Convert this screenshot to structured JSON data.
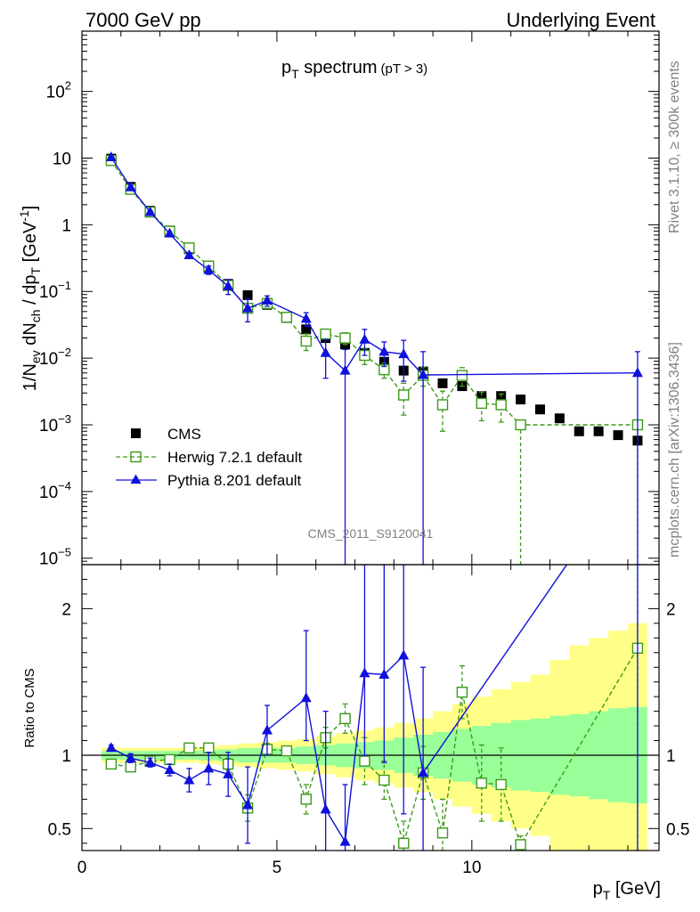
{
  "header": {
    "left": "7000 GeV pp",
    "right": "Underlying Event"
  },
  "side": {
    "rivet": "Rivet 3.1.10, ≥ 300k events",
    "mcplots": "mcplots.cern.ch [arXiv:1306.3436]"
  },
  "chart_data": {
    "type": "scatter",
    "title_main": "p",
    "title_sub": "T",
    "title_rest": " spectrum",
    "title_cut": "(pT >  3)",
    "analysis_label": "CMS_2011_S9120041",
    "xlabel_main": "p",
    "xlabel_sub": "T",
    "xlabel_rest": " [GeV]",
    "ylabel": "1/N_ev dN_ch / dp_T [GeV^-1]",
    "ylabel_parts": {
      "a": "1/N",
      "a_sub": "ev",
      "b": " dN",
      "b_sub": "ch",
      "c": " / dp",
      "c_sub": "T",
      "d": " [GeV",
      "d_sup": "-1",
      "e": "]"
    },
    "ratio_ylabel": "Ratio to CMS",
    "xlim": [
      0,
      14.8
    ],
    "ylim": [
      8e-06,
      800
    ],
    "yscale": "log",
    "ratio_ylim": [
      0.35,
      2.3
    ],
    "x_ticks": [
      0,
      5,
      10
    ],
    "x_tick_labels": [
      "0",
      "5",
      "10"
    ],
    "y_ticks": [
      1e-05,
      0.0001,
      0.001,
      0.01,
      0.1,
      1,
      10,
      100
    ],
    "y_tick_labels": [
      {
        "base": "10",
        "exp": "−5"
      },
      {
        "base": "10",
        "exp": "−4"
      },
      {
        "base": "10",
        "exp": "−3"
      },
      {
        "base": "10",
        "exp": "−2"
      },
      {
        "base": "10",
        "exp": "−1"
      },
      {
        "base": "1",
        "exp": ""
      },
      {
        "base": "10",
        "exp": ""
      },
      {
        "base": "10",
        "exp": "2"
      }
    ],
    "ratio_ticks": [
      0.5,
      1,
      2
    ],
    "ratio_tick_labels": [
      "0.5",
      "1",
      "2"
    ],
    "legend": {
      "position": "lower-left",
      "entries": [
        "CMS",
        "Herwig 7.2.1 default",
        "Pythia 8.201 default"
      ]
    },
    "colors": {
      "data": "#000000",
      "herwig": "#3d9a1a",
      "pythia": "#1010dd",
      "band_inner": "#99ff99",
      "band_outer": "#ffff88"
    },
    "series": [
      {
        "name": "CMS",
        "x": [
          0.75,
          1.25,
          1.75,
          2.25,
          2.75,
          3.25,
          3.75,
          4.25,
          4.75,
          5.25,
          5.75,
          6.25,
          6.75,
          7.25,
          7.75,
          8.25,
          8.75,
          9.25,
          9.75,
          10.25,
          10.75,
          11.25,
          11.75,
          12.25,
          12.75,
          13.25,
          13.75,
          14.25
        ],
        "y": [
          9.8,
          3.7,
          1.62,
          0.82,
          0.43,
          0.23,
          0.13,
          0.088,
          0.063,
          0.04,
          0.027,
          0.02,
          0.016,
          0.012,
          0.0088,
          0.0065,
          0.0063,
          0.0042,
          0.0038,
          0.0027,
          0.0027,
          0.0024,
          0.0017,
          0.00125,
          0.0008,
          0.0008,
          0.0007,
          0.00058
        ]
      },
      {
        "name": "Herwig 7.2.1 default",
        "x": [
          0.75,
          1.25,
          1.75,
          2.25,
          2.75,
          3.25,
          3.75,
          4.25,
          4.75,
          5.25,
          5.75,
          6.25,
          6.75,
          7.25,
          7.75,
          8.25,
          8.75,
          9.25,
          9.75,
          10.25,
          10.75,
          11.25,
          14.25
        ],
        "y": [
          9.2,
          3.4,
          1.55,
          0.8,
          0.45,
          0.24,
          0.123,
          0.056,
          0.066,
          0.041,
          0.018,
          0.023,
          0.02,
          0.011,
          0.0067,
          0.0028,
          0.0055,
          0.002,
          0.0055,
          0.0021,
          0.002,
          0.001,
          0.001
        ],
        "ylo": [
          9.0,
          3.35,
          1.52,
          0.78,
          0.44,
          0.235,
          0.115,
          0.048,
          0.06,
          0.038,
          0.013,
          0.019,
          0.016,
          0.008,
          0.005,
          0.0014,
          0.0038,
          0.0008,
          0.0038,
          0.00115,
          0.0011,
          8e-06,
          8e-06
        ],
        "yhi": [
          9.4,
          3.45,
          1.58,
          0.82,
          0.46,
          0.245,
          0.131,
          0.064,
          0.072,
          0.044,
          0.023,
          0.027,
          0.024,
          0.014,
          0.0084,
          0.0042,
          0.0072,
          0.0032,
          0.0072,
          0.0031,
          0.0029,
          0.0011,
          0.0011
        ],
        "ratio": [
          0.94,
          0.92,
          0.96,
          0.97,
          1.05,
          1.05,
          0.94,
          0.64,
          1.04,
          1.03,
          0.7,
          1.12,
          1.25,
          0.96,
          0.83,
          0.4,
          0.88,
          0.47,
          1.43,
          0.81,
          0.8,
          0.39,
          1.73
        ],
        "ratio_lo": [
          0.93,
          0.9,
          0.94,
          0.95,
          1.02,
          1.02,
          0.9,
          0.55,
          1.0,
          1.0,
          0.6,
          1.05,
          1.15,
          0.8,
          0.7,
          0.35,
          0.7,
          0.35,
          1.25,
          0.55,
          0.55,
          0.35,
          0.35
        ],
        "ratio_hi": [
          0.95,
          0.94,
          0.98,
          0.99,
          1.08,
          1.08,
          0.98,
          0.73,
          1.08,
          1.06,
          0.8,
          1.19,
          1.35,
          1.12,
          0.96,
          0.55,
          1.06,
          0.7,
          1.61,
          1.07,
          1.05,
          0.45,
          2.3
        ]
      },
      {
        "name": "Pythia 8.201 default",
        "x": [
          0.75,
          1.25,
          1.75,
          2.25,
          2.75,
          3.25,
          3.75,
          4.25,
          4.75,
          5.75,
          6.25,
          6.75,
          7.25,
          7.75,
          8.25,
          8.75,
          14.25
        ],
        "y": [
          10.3,
          3.65,
          1.55,
          0.74,
          0.35,
          0.21,
          0.12,
          0.056,
          0.073,
          0.039,
          0.012,
          0.0065,
          0.019,
          0.0125,
          0.0115,
          0.0056,
          0.006
        ],
        "ylo": [
          10.0,
          3.5,
          1.48,
          0.7,
          0.32,
          0.18,
          0.09,
          0.035,
          0.06,
          0.03,
          0.005,
          8e-06,
          0.011,
          0.0075,
          0.0045,
          8e-06,
          8e-06
        ],
        "yhi": [
          10.6,
          3.8,
          1.62,
          0.78,
          0.38,
          0.24,
          0.15,
          0.077,
          0.086,
          0.048,
          0.019,
          0.0135,
          0.027,
          0.0175,
          0.0185,
          0.0125,
          0.0125
        ],
        "ratio": [
          1.05,
          0.98,
          0.95,
          0.9,
          0.83,
          0.91,
          0.87,
          0.66,
          1.17,
          1.39,
          0.63,
          0.41,
          1.56,
          1.55,
          1.68,
          0.88,
          3.0
        ],
        "ratio_lo": [
          1.03,
          0.95,
          0.92,
          0.86,
          0.75,
          0.8,
          0.72,
          0.4,
          1.0,
          1.1,
          0.35,
          0.35,
          1.0,
          0.95,
          0.6,
          0.35,
          0.35
        ],
        "ratio_hi": [
          1.07,
          1.01,
          0.98,
          0.94,
          0.91,
          1.02,
          1.02,
          0.92,
          1.34,
          1.85,
          1.3,
          0.8,
          2.3,
          2.3,
          2.3,
          1.6,
          3.0
        ]
      }
    ],
    "ratio_band": {
      "x_edges": [
        0.5,
        1.0,
        1.5,
        2.0,
        2.5,
        3.0,
        3.5,
        4.0,
        4.5,
        5.0,
        5.5,
        6.0,
        6.5,
        7.0,
        7.5,
        8.0,
        8.5,
        9.0,
        9.5,
        10.0,
        10.5,
        11.0,
        11.5,
        12.0,
        12.5,
        13.0,
        13.5,
        14.0,
        14.5
      ],
      "inner": [
        0.03,
        0.03,
        0.03,
        0.03,
        0.03,
        0.035,
        0.04,
        0.05,
        0.05,
        0.05,
        0.06,
        0.07,
        0.08,
        0.09,
        0.1,
        0.12,
        0.14,
        0.16,
        0.18,
        0.2,
        0.22,
        0.24,
        0.25,
        0.27,
        0.28,
        0.3,
        0.32,
        0.33
      ],
      "outer": [
        0.05,
        0.05,
        0.05,
        0.05,
        0.05,
        0.06,
        0.07,
        0.08,
        0.09,
        0.1,
        0.11,
        0.13,
        0.15,
        0.17,
        0.19,
        0.22,
        0.25,
        0.3,
        0.35,
        0.4,
        0.45,
        0.5,
        0.55,
        0.65,
        0.75,
        0.8,
        0.85,
        0.9
      ]
    }
  }
}
